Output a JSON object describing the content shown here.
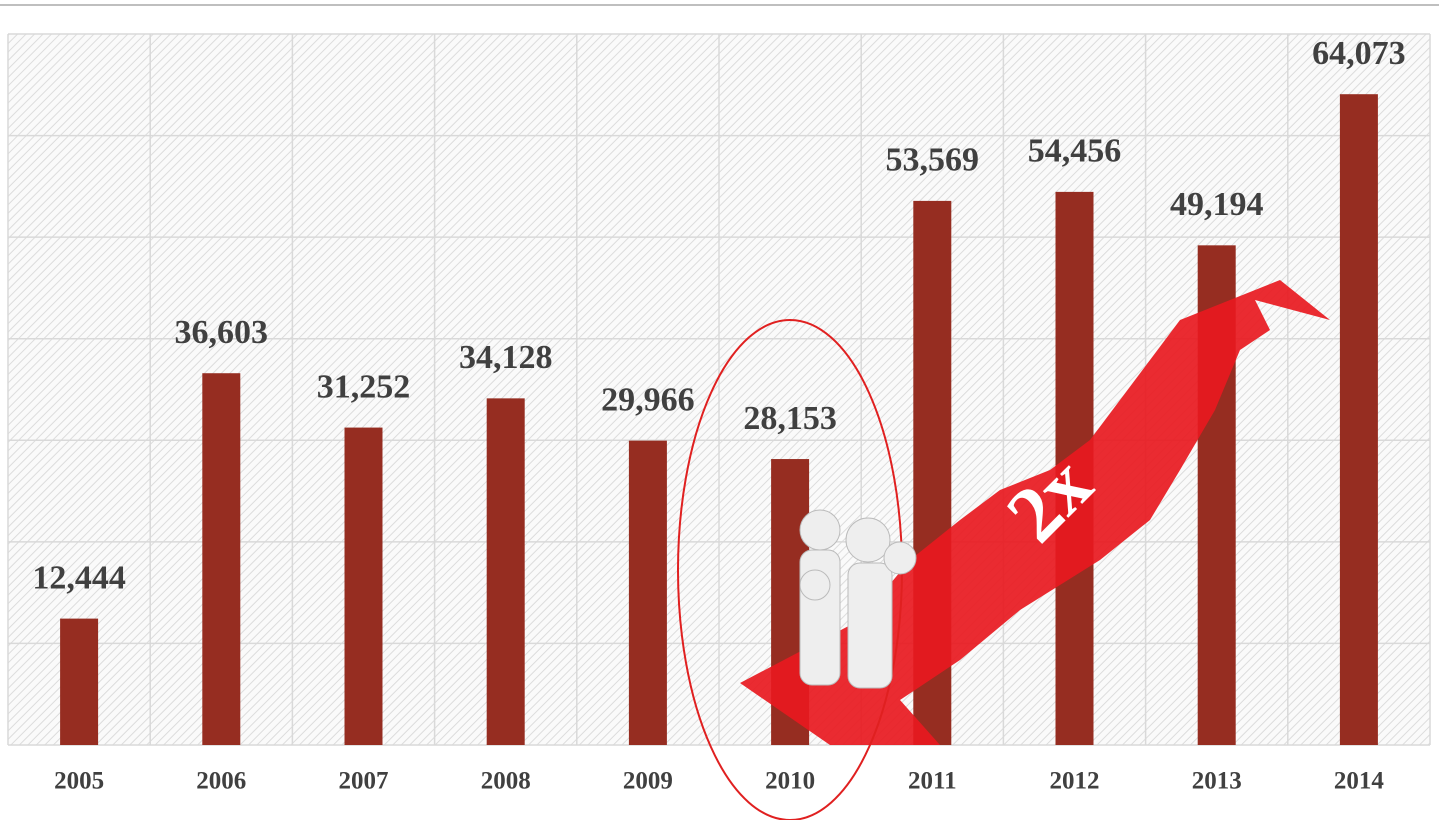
{
  "chart_data": {
    "type": "bar",
    "categories": [
      "2005",
      "2006",
      "2007",
      "2008",
      "2009",
      "2010",
      "2011",
      "2012",
      "2013",
      "2014"
    ],
    "values": [
      12444,
      36603,
      31252,
      34128,
      29966,
      28153,
      53569,
      54456,
      49194,
      64073
    ],
    "value_labels": [
      "12,444",
      "36,603",
      "31,252",
      "34,128",
      "29,966",
      "28,153",
      "53,569",
      "54,456",
      "49,194",
      "64,073"
    ],
    "color": "#962d21",
    "ylim": [
      0,
      70000
    ],
    "yticks": [
      0,
      10000,
      20000,
      30000,
      40000,
      50000,
      60000,
      70000
    ],
    "grid": true,
    "annotation": "2x"
  }
}
